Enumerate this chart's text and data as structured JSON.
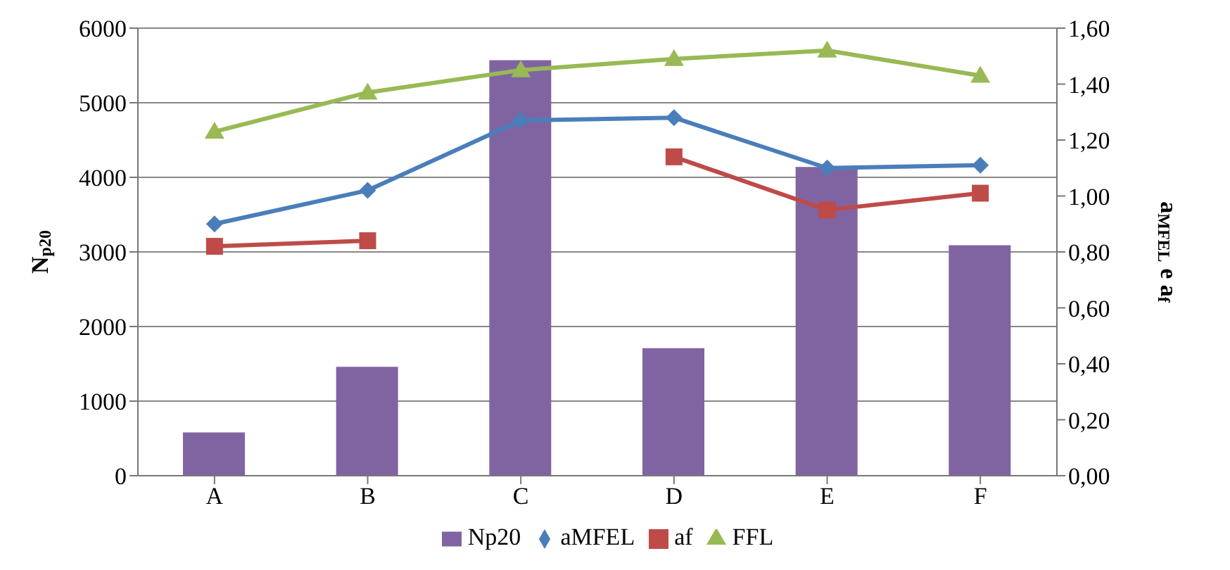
{
  "chart_data": {
    "type": "bar",
    "categories": [
      "A",
      "B",
      "C",
      "D",
      "E",
      "F"
    ],
    "ylabel": "N$_{p20}$",
    "y2label": "a$_{MFEL}$ e a$_{f}$",
    "series": [
      {
        "name": "Np20",
        "color": "#8064a2",
        "values": [
          580,
          1460,
          5570,
          1710,
          4140,
          3090
        ]
      },
      {
        "name": "aMFEL",
        "type": "line",
        "axis": "y2",
        "color": "#4a7ebb",
        "marker": "diamond",
        "values": [
          0.9,
          1.02,
          1.27,
          1.28,
          1.1,
          1.11
        ]
      },
      {
        "name": "af",
        "type": "line",
        "axis": "y2",
        "color": "#be4b48",
        "marker": "square",
        "values": [
          0.82,
          0.84,
          null,
          1.14,
          0.95,
          1.01
        ]
      },
      {
        "name": "FFL",
        "type": "line",
        "axis": "y2",
        "color": "#98b954",
        "marker": "triangle",
        "values": [
          1.23,
          1.37,
          1.45,
          1.49,
          1.52,
          1.43
        ]
      }
    ],
    "ylim": [
      0,
      6000
    ],
    "yticks": [
      0,
      1000,
      2000,
      3000,
      4000,
      5000,
      6000
    ],
    "y2lim": [
      0,
      1.6
    ],
    "y2ticks": [
      {
        "value": 0,
        "label": "0,00"
      },
      {
        "value": 0.2,
        "label": "0,20"
      },
      {
        "value": 0.4,
        "label": "0,40"
      },
      {
        "value": 0.6,
        "label": "0,60"
      },
      {
        "value": 0.8,
        "label": "0,80"
      },
      {
        "value": 1.0,
        "label": "1,00"
      },
      {
        "value": 1.2,
        "label": "1,20"
      },
      {
        "value": 1.4,
        "label": "1,40"
      },
      {
        "value": 1.6,
        "label": "1,60"
      }
    ],
    "grid": "y",
    "legend": "bottom"
  }
}
